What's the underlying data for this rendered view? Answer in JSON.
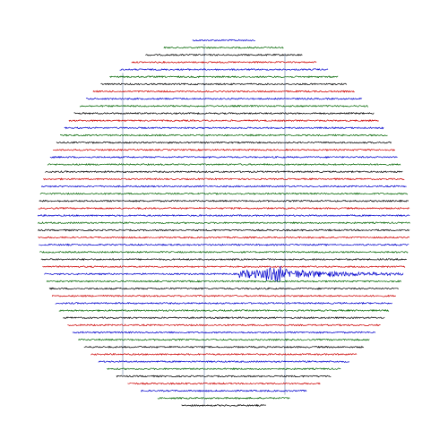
{
  "display": {
    "trace_colors": [
      "#0000cc",
      "#006400",
      "#000000",
      "#cc0000"
    ],
    "grid_color": "#7a8fb0",
    "event_color": "#0000ff"
  }
}
